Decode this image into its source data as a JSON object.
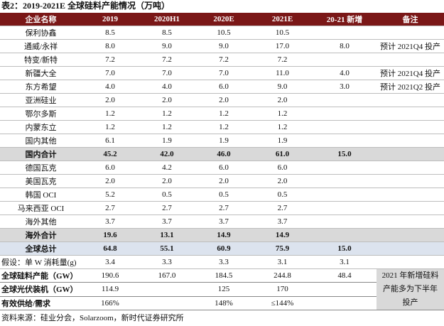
{
  "title": "表2：2019-2021E 全球硅料产能情况（万吨）",
  "table": {
    "header": [
      "企业名称",
      "2019",
      "2020H1",
      "2020E",
      "2021E",
      "20-21 新增",
      "备注"
    ],
    "rows": [
      [
        "保利协鑫",
        "8.5",
        "8.5",
        "10.5",
        "10.5",
        null,
        null
      ],
      [
        "通威/永祥",
        "8.0",
        "9.0",
        "9.0",
        "17.0",
        "8.0",
        "预计 2021Q4 投产"
      ],
      [
        "特变/新特",
        "7.2",
        "7.2",
        "7.2",
        "7.2",
        null,
        null
      ],
      [
        "新疆大全",
        "7.0",
        "7.0",
        "7.0",
        "11.0",
        "4.0",
        "预计 2021Q4 投产"
      ],
      [
        "东方希望",
        "4.0",
        "4.0",
        "6.0",
        "9.0",
        "3.0",
        "预计 2021Q2 投产"
      ],
      [
        "亚洲硅业",
        "2.0",
        "2.0",
        "2.0",
        "2.0",
        null,
        null
      ],
      [
        "鄂尔多斯",
        "1.2",
        "1.2",
        "1.2",
        "1.2",
        null,
        null
      ],
      [
        "内蒙东立",
        "1.2",
        "1.2",
        "1.2",
        "1.2",
        null,
        null
      ],
      [
        "国内其他",
        "6.1",
        "1.9",
        "1.9",
        "1.9",
        null,
        null
      ],
      [
        "国内合计",
        "45.2",
        "42.0",
        "46.0",
        "61.0",
        "15.0",
        null
      ],
      [
        "德国瓦克",
        "6.0",
        "4.2",
        "6.0",
        "6.0",
        null,
        null
      ],
      [
        "美国瓦克",
        "2.0",
        "2.0",
        "2.0",
        "2.0",
        null,
        null
      ],
      [
        "韩国 OCI",
        "5.2",
        "0.5",
        "0.5",
        "0.5",
        null,
        null
      ],
      [
        "马来西亚 OCI",
        "2.7",
        "2.7",
        "2.7",
        "2.7",
        null,
        null
      ],
      [
        "海外其他",
        "3.7",
        "3.7",
        "3.7",
        "3.7",
        null,
        null
      ],
      [
        "海外合计",
        "19.6",
        "13.1",
        "14.9",
        "14.9",
        null,
        null
      ],
      [
        "全球总计",
        "64.8",
        "55.1",
        "60.9",
        "75.9",
        "15.0",
        null
      ],
      [
        "假设：单 W 消耗量(g)",
        "3.4",
        "3.3",
        "3.3",
        "3.1",
        "3.1",
        null
      ]
    ],
    "summary_rows": [
      [
        "全球硅料产能（GW）",
        "190.6",
        "167.0",
        "184.5",
        "244.8",
        "48.4"
      ],
      [
        "全球光伏装机（GW）",
        "114.9",
        null,
        "125",
        "170",
        null
      ],
      [
        "有效供给/需求",
        "166%",
        null,
        "148%",
        "≤144%",
        null
      ]
    ],
    "summary_note": "2021 年新增硅料产能多为下半年投产"
  },
  "source": "资料来源：硅业分会，Solarzoom，新时代证券研究所"
}
